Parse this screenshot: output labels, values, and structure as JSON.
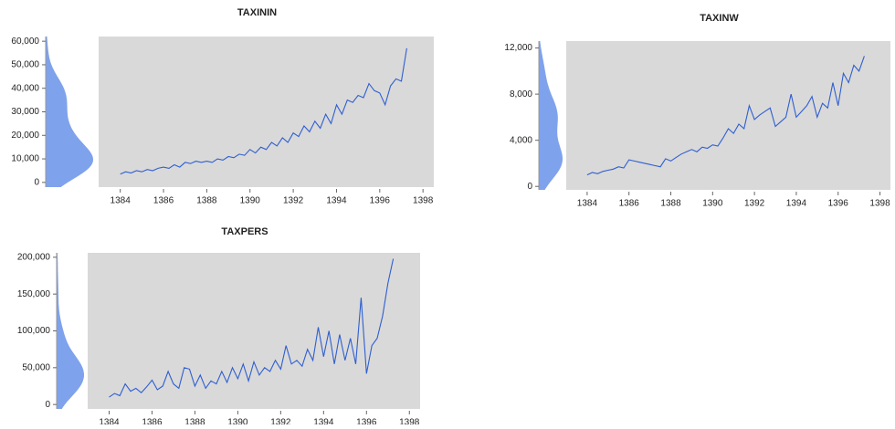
{
  "chart_data": [
    {
      "type": "line",
      "title": "TAXININ",
      "color": "#2f5fd0",
      "density_color": "#7fa2ec",
      "x": [
        1384,
        1384.25,
        1384.5,
        1384.75,
        1385,
        1385.25,
        1385.5,
        1385.75,
        1386,
        1386.25,
        1386.5,
        1386.75,
        1387,
        1387.25,
        1387.5,
        1387.75,
        1388,
        1388.25,
        1388.5,
        1388.75,
        1389,
        1389.25,
        1389.5,
        1389.75,
        1390,
        1390.25,
        1390.5,
        1390.75,
        1391,
        1391.25,
        1391.5,
        1391.75,
        1392,
        1392.25,
        1392.5,
        1392.75,
        1393,
        1393.25,
        1393.5,
        1393.75,
        1394,
        1394.25,
        1394.5,
        1394.75,
        1395,
        1395.25,
        1395.5,
        1395.75,
        1396,
        1396.25,
        1396.5,
        1396.75,
        1397,
        1397.25
      ],
      "values": [
        3500,
        4500,
        4000,
        5000,
        4500,
        5500,
        5000,
        6000,
        6500,
        6000,
        7500,
        6500,
        8500,
        8000,
        9000,
        8500,
        9000,
        8500,
        10000,
        9500,
        11000,
        10500,
        12000,
        11500,
        14000,
        12500,
        15000,
        14000,
        17000,
        15500,
        19000,
        17000,
        21000,
        19500,
        24000,
        21500,
        26000,
        23000,
        29000,
        25000,
        33000,
        29000,
        35000,
        34000,
        37000,
        36000,
        42000,
        39000,
        38000,
        33000,
        41000,
        44000,
        43000,
        57000
      ],
      "xlim": [
        1383,
        1398.5
      ],
      "xticks": [
        1384,
        1386,
        1388,
        1390,
        1392,
        1394,
        1396,
        1398
      ],
      "ylim": [
        -2000,
        62000
      ],
      "yticks": [
        0,
        {
          "value": 10000,
          "label": "10,000"
        },
        {
          "value": 20000,
          "label": "20,000"
        },
        {
          "value": 30000,
          "label": "30,000"
        },
        {
          "value": 40000,
          "label": "40,000"
        },
        {
          "value": 50000,
          "label": "50,000"
        },
        {
          "value": 60000,
          "label": "60,000"
        }
      ]
    },
    {
      "type": "line",
      "title": "TAXINW",
      "color": "#2f5fd0",
      "density_color": "#7fa2ec",
      "x": [
        1384,
        1384.25,
        1384.5,
        1384.75,
        1385,
        1385.25,
        1385.5,
        1385.75,
        1386,
        1386.25,
        1386.5,
        1386.75,
        1387,
        1387.25,
        1387.5,
        1387.75,
        1388,
        1388.25,
        1388.5,
        1388.75,
        1389,
        1389.25,
        1389.5,
        1389.75,
        1390,
        1390.25,
        1390.5,
        1390.75,
        1391,
        1391.25,
        1391.5,
        1391.75,
        1392,
        1392.25,
        1392.5,
        1392.75,
        1393,
        1393.25,
        1393.5,
        1393.75,
        1394,
        1394.25,
        1394.5,
        1394.75,
        1395,
        1395.25,
        1395.5,
        1395.75,
        1396,
        1396.25,
        1396.5,
        1396.75,
        1397,
        1397.25
      ],
      "values": [
        1000,
        1200,
        1100,
        1300,
        1400,
        1500,
        1700,
        1600,
        2300,
        2200,
        2100,
        2000,
        1900,
        1800,
        1700,
        2400,
        2200,
        2500,
        2800,
        3000,
        3200,
        3000,
        3400,
        3300,
        3600,
        3500,
        4200,
        5000,
        4600,
        5400,
        5000,
        7000,
        5800,
        6200,
        6500,
        6800,
        5200,
        5600,
        6000,
        8000,
        6000,
        6500,
        7000,
        7800,
        6000,
        7200,
        6800,
        9000,
        7000,
        9800,
        9000,
        10500,
        10000,
        11300
      ],
      "xlim": [
        1383,
        1398.5
      ],
      "xticks": [
        1384,
        1386,
        1388,
        1390,
        1392,
        1394,
        1396,
        1398
      ],
      "ylim": [
        -300,
        12600
      ],
      "yticks": [
        0,
        {
          "value": 4000,
          "label": "4,000"
        },
        {
          "value": 8000,
          "label": "8,000"
        },
        {
          "value": 12000,
          "label": "12,000"
        }
      ]
    },
    {
      "type": "line",
      "title": "TAXPERS",
      "color": "#2f5fd0",
      "density_color": "#7fa2ec",
      "x": [
        1384,
        1384.25,
        1384.5,
        1384.75,
        1385,
        1385.25,
        1385.5,
        1385.75,
        1386,
        1386.25,
        1386.5,
        1386.75,
        1387,
        1387.25,
        1387.5,
        1387.75,
        1388,
        1388.25,
        1388.5,
        1388.75,
        1389,
        1389.25,
        1389.5,
        1389.75,
        1390,
        1390.25,
        1390.5,
        1390.75,
        1391,
        1391.25,
        1391.5,
        1391.75,
        1392,
        1392.25,
        1392.5,
        1392.75,
        1393,
        1393.25,
        1393.5,
        1393.75,
        1394,
        1394.25,
        1394.5,
        1394.75,
        1395,
        1395.25,
        1395.5,
        1395.75,
        1396,
        1396.25,
        1396.5,
        1396.75,
        1397,
        1397.25
      ],
      "values": [
        10000,
        15000,
        12000,
        28000,
        18000,
        22000,
        16000,
        24000,
        33000,
        20000,
        25000,
        45000,
        28000,
        22000,
        50000,
        48000,
        25000,
        40000,
        22000,
        32000,
        28000,
        45000,
        30000,
        50000,
        35000,
        55000,
        32000,
        58000,
        40000,
        50000,
        45000,
        60000,
        48000,
        80000,
        55000,
        60000,
        52000,
        75000,
        60000,
        105000,
        65000,
        100000,
        55000,
        95000,
        60000,
        90000,
        55000,
        145000,
        42000,
        80000,
        90000,
        120000,
        165000,
        198000
      ],
      "xlim": [
        1383,
        1398.5
      ],
      "xticks": [
        1384,
        1386,
        1388,
        1390,
        1392,
        1394,
        1396,
        1398
      ],
      "ylim": [
        -6000,
        206000
      ],
      "yticks": [
        0,
        {
          "value": 50000,
          "label": "50,000"
        },
        {
          "value": 100000,
          "label": "100,000"
        },
        {
          "value": 150000,
          "label": "150,000"
        },
        {
          "value": 200000,
          "label": "200,000"
        }
      ]
    }
  ]
}
